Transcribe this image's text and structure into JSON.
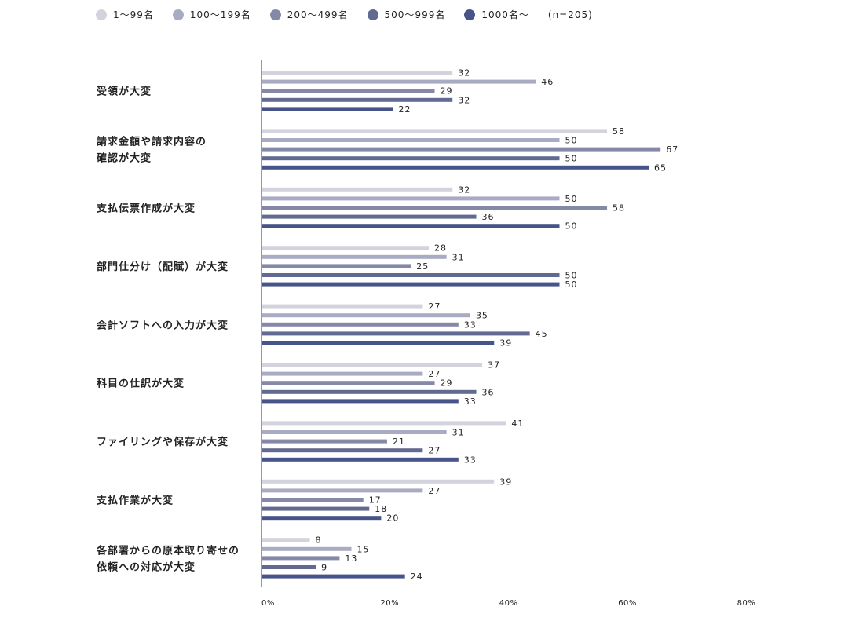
{
  "legend": {
    "items": [
      {
        "label": "1〜99名",
        "color": "#d3d3de"
      },
      {
        "label": "100〜199名",
        "color": "#a9abc2"
      },
      {
        "label": "200〜499名",
        "color": "#8589a7"
      },
      {
        "label": "500〜999名",
        "color": "#636a91"
      },
      {
        "label": "1000名〜",
        "color": "#47548a"
      }
    ],
    "n_label": "(n=205)"
  },
  "chart_data": {
    "type": "bar",
    "orientation": "horizontal",
    "unit": "%",
    "xlim": [
      0,
      80
    ],
    "xticks": [
      "0%",
      "20%",
      "40%",
      "60%",
      "80%"
    ],
    "categories": [
      [
        "受領が大変"
      ],
      [
        "請求金額や請求内容の",
        "確認が大変"
      ],
      [
        "支払伝票作成が大変"
      ],
      [
        "部門仕分け（配賦）が大変"
      ],
      [
        "会計ソフトへの入力が大変"
      ],
      [
        "科目の仕訳が大変"
      ],
      [
        "ファイリングや保存が大変"
      ],
      [
        "支払作業が大変"
      ],
      [
        "各部署からの原本取り寄せの",
        "依頼への対応が大変"
      ]
    ],
    "series": [
      {
        "name": "1〜99名",
        "values": [
          32,
          58,
          32,
          28,
          27,
          37,
          41,
          39,
          8
        ]
      },
      {
        "name": "100〜199名",
        "values": [
          46,
          50,
          50,
          31,
          35,
          27,
          31,
          27,
          15
        ]
      },
      {
        "name": "200〜499名",
        "values": [
          29,
          67,
          58,
          25,
          33,
          29,
          21,
          17,
          13
        ]
      },
      {
        "name": "500〜999名",
        "values": [
          32,
          50,
          36,
          50,
          45,
          36,
          27,
          18,
          9
        ]
      },
      {
        "name": "1000名〜",
        "values": [
          22,
          65,
          50,
          50,
          39,
          33,
          33,
          20,
          24
        ]
      }
    ]
  }
}
